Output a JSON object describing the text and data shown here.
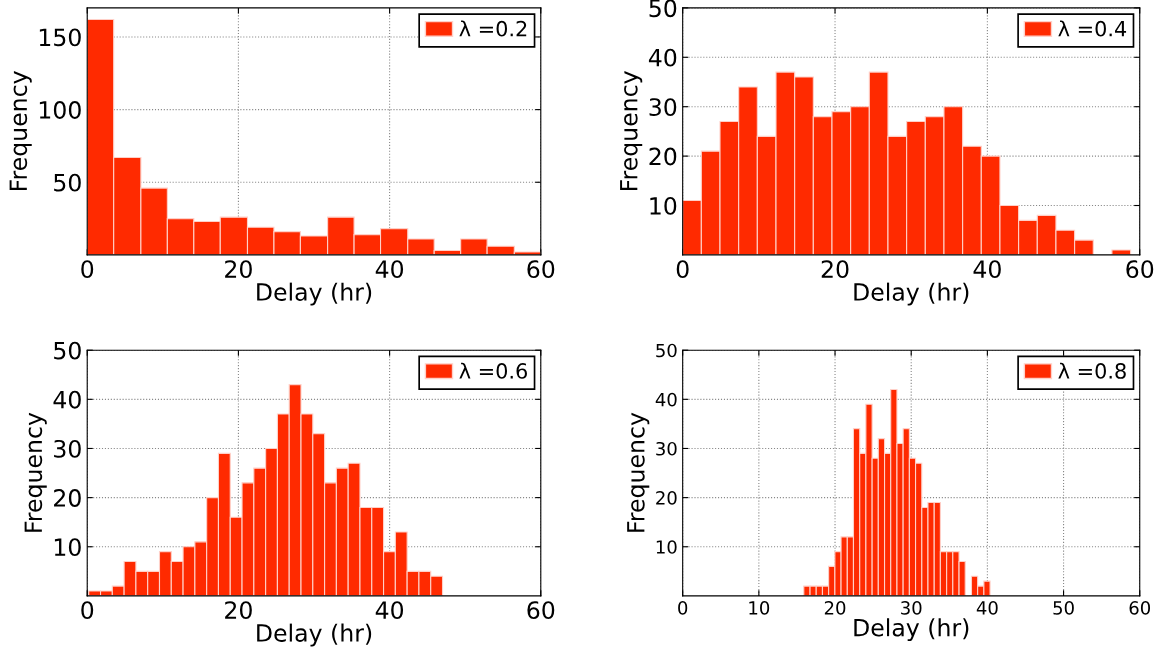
{
  "chart_data": [
    {
      "type": "histogram",
      "xlabel": "Delay (hr)",
      "ylabel": "Frequency",
      "xlim": [
        0,
        60
      ],
      "ylim": [
        0,
        170
      ],
      "xticks": [
        0,
        20,
        40,
        60
      ],
      "yticks": [
        50,
        100,
        150
      ],
      "grid": true,
      "legend": "top right",
      "bins": [
        0,
        3.5,
        7.1,
        10.6,
        14.1,
        17.6,
        21.2,
        24.7,
        28.2,
        31.8,
        35.3,
        38.8,
        42.4,
        45.9,
        49.4,
        52.9,
        56.5,
        60
      ],
      "series": [
        {
          "name": "λ =0.2",
          "color": "#ff2a00",
          "values": [
            162,
            67,
            46,
            25,
            23,
            26,
            19,
            16,
            13,
            26,
            14,
            18,
            11,
            3,
            11,
            6,
            2
          ]
        }
      ]
    },
    {
      "type": "histogram",
      "xlabel": "Delay (hr)",
      "ylabel": "Frequency",
      "xlim": [
        0,
        60
      ],
      "ylim": [
        0,
        50
      ],
      "xticks": [
        0,
        20,
        40,
        60
      ],
      "yticks": [
        10,
        20,
        30,
        40,
        50
      ],
      "grid": true,
      "legend": "top right",
      "bins": [
        0,
        2.45,
        4.9,
        7.35,
        9.8,
        12.25,
        14.7,
        17.15,
        19.6,
        22.05,
        24.5,
        26.95,
        29.4,
        31.85,
        34.3,
        36.75,
        39.2,
        41.65,
        44.1,
        46.55,
        49,
        51.45,
        53.9,
        56.35,
        58.8
      ],
      "series": [
        {
          "name": "λ =0.4",
          "color": "#ff2a00",
          "values": [
            11,
            21,
            27,
            34,
            24,
            37,
            36,
            28,
            29,
            30,
            37,
            24,
            27,
            28,
            30,
            22,
            20,
            10,
            7,
            8,
            5,
            3,
            0,
            1
          ]
        }
      ]
    },
    {
      "type": "histogram",
      "xlabel": "Delay (hr)",
      "ylabel": "Frequency",
      "xlim": [
        0,
        60
      ],
      "ylim": [
        0,
        50
      ],
      "xticks": [
        0,
        20,
        40,
        60
      ],
      "yticks": [
        10,
        20,
        30,
        40,
        50
      ],
      "grid": true,
      "legend": "top right",
      "bins": [
        0.2,
        1.76,
        3.32,
        4.88,
        6.44,
        8,
        9.56,
        11.12,
        12.68,
        14.24,
        15.8,
        17.36,
        18.92,
        20.48,
        22.04,
        23.6,
        25.16,
        26.72,
        28.28,
        29.84,
        31.4,
        32.96,
        34.52,
        36.08,
        37.64,
        39.2,
        40.76,
        42.32,
        43.88,
        45.44,
        47.0
      ],
      "series": [
        {
          "name": "λ =0.6",
          "color": "#ff2a00",
          "values": [
            1,
            1,
            2,
            7,
            5,
            5,
            9,
            7,
            10,
            11,
            20,
            29,
            16,
            23,
            26,
            30,
            37,
            43,
            37,
            33,
            23,
            26,
            27,
            18,
            18,
            9,
            13,
            5,
            5,
            4
          ]
        }
      ]
    },
    {
      "type": "histogram",
      "xlabel": "Delay (hr)",
      "ylabel": "Frequency",
      "xlim": [
        0,
        60
      ],
      "ylim": [
        0,
        50
      ],
      "xticks": [
        0,
        10,
        20,
        30,
        40,
        50,
        60
      ],
      "yticks": [
        10,
        20,
        30,
        40,
        50
      ],
      "grid": true,
      "legend": "top right",
      "bins": [
        15.9,
        16.72,
        17.53,
        18.35,
        19.16,
        19.98,
        20.79,
        21.61,
        22.42,
        23.24,
        24.05,
        24.87,
        25.68,
        26.5,
        27.31,
        28.13,
        28.94,
        29.76,
        30.57,
        31.39,
        32.2,
        33.02,
        33.83,
        34.65,
        35.46,
        36.28,
        37.09,
        37.91,
        38.72,
        39.54,
        40.35
      ],
      "series": [
        {
          "name": "λ =0.8",
          "color": "#ff2a00",
          "values": [
            2,
            2,
            2,
            2,
            6,
            9,
            12,
            12,
            34,
            29,
            39,
            28,
            32,
            29,
            42,
            31,
            34,
            28,
            27,
            18,
            19,
            19,
            9,
            9,
            9,
            7,
            0,
            4,
            2,
            3
          ]
        }
      ]
    }
  ]
}
